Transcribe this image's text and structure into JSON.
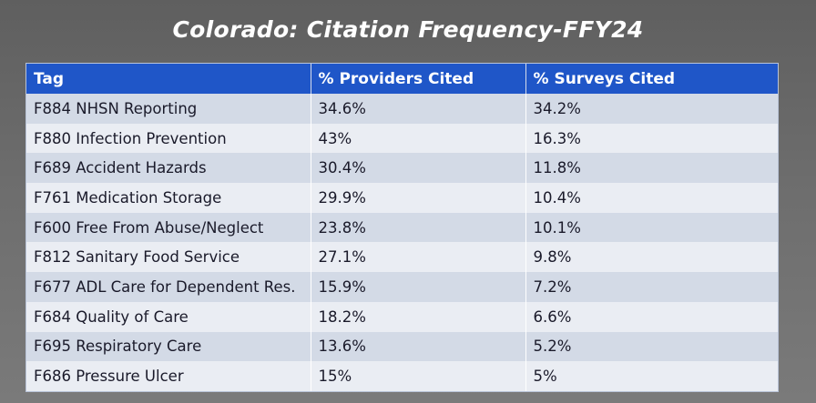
{
  "title": "Colorado: Citation Frequency-FFY24",
  "table": {
    "headers": [
      "Tag",
      "% Providers Cited",
      "% Surveys Cited"
    ],
    "rows": [
      [
        "F884 NHSN Reporting",
        "34.6%",
        "34.2%"
      ],
      [
        "F880 Infection Prevention",
        "43%",
        "16.3%"
      ],
      [
        "F689 Accident Hazards",
        "30.4%",
        "11.8%"
      ],
      [
        "F761 Medication Storage",
        "29.9%",
        "10.4%"
      ],
      [
        "F600 Free From Abuse/Neglect",
        "23.8%",
        "10.1%"
      ],
      [
        "F812 Sanitary Food Service",
        "27.1%",
        "9.8%"
      ],
      [
        "F677 ADL Care for Dependent Res.",
        "15.9%",
        "7.2%"
      ],
      [
        "F684 Quality of Care",
        "18.2%",
        "6.6%"
      ],
      [
        "F695 Respiratory Care",
        "13.6%",
        "5.2%"
      ],
      [
        "F686 Pressure Ulcer",
        "15%",
        "5%"
      ]
    ]
  },
  "colors": {
    "header_bg": "#1f56c8",
    "row_odd": "#d3dae6",
    "row_even": "#eaedf3",
    "title_text": "#ffffff"
  }
}
